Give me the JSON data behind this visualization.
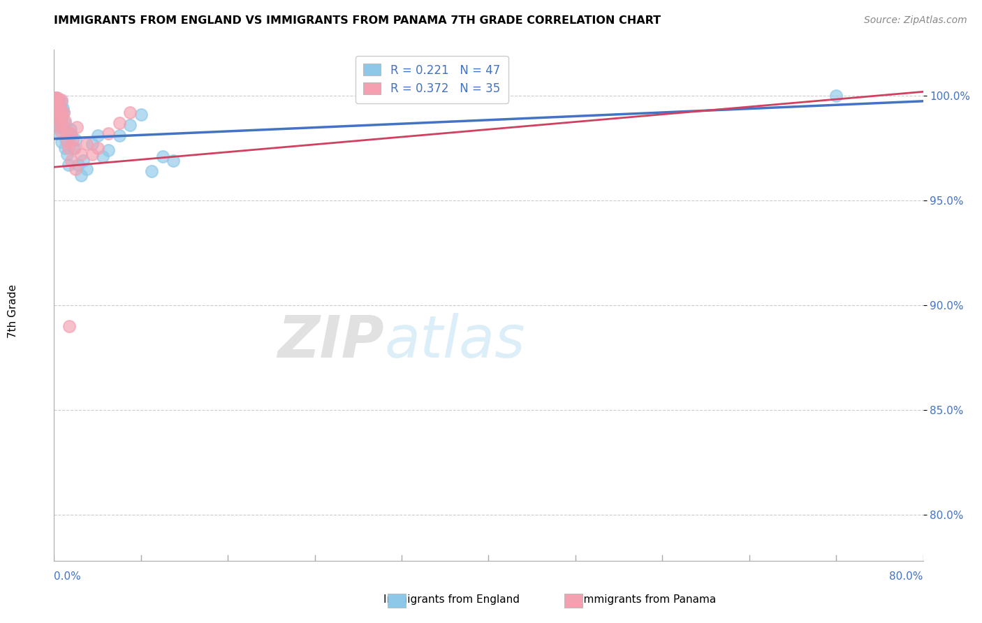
{
  "title": "IMMIGRANTS FROM ENGLAND VS IMMIGRANTS FROM PANAMA 7TH GRADE CORRELATION CHART",
  "source": "Source: ZipAtlas.com",
  "ylabel": "7th Grade",
  "ytick_labels": [
    "80.0%",
    "85.0%",
    "90.0%",
    "95.0%",
    "100.0%"
  ],
  "ytick_values": [
    0.8,
    0.85,
    0.9,
    0.95,
    1.0
  ],
  "xmin": 0.0,
  "xmax": 0.8,
  "ymin": 0.778,
  "ymax": 1.022,
  "legend_r_england": "R = 0.221",
  "legend_n_england": "N = 47",
  "legend_r_panama": "R = 0.372",
  "legend_n_panama": "N = 35",
  "color_england": "#8EC8E8",
  "color_panama": "#F4A0B0",
  "trendline_england_color": "#4472C4",
  "trendline_panama_color": "#D04060",
  "watermark_zip": "ZIP",
  "watermark_atlas": "atlas",
  "england_x": [
    0.001,
    0.001,
    0.002,
    0.002,
    0.002,
    0.003,
    0.003,
    0.003,
    0.003,
    0.004,
    0.004,
    0.004,
    0.005,
    0.005,
    0.005,
    0.006,
    0.006,
    0.007,
    0.007,
    0.007,
    0.008,
    0.008,
    0.009,
    0.01,
    0.01,
    0.011,
    0.012,
    0.013,
    0.015,
    0.016,
    0.018,
    0.02,
    0.022,
    0.025,
    0.027,
    0.03,
    0.035,
    0.04,
    0.045,
    0.05,
    0.06,
    0.07,
    0.08,
    0.09,
    0.1,
    0.11,
    0.72
  ],
  "england_y": [
    0.998,
    0.996,
    0.999,
    0.994,
    0.99,
    0.998,
    0.994,
    0.989,
    0.983,
    0.997,
    0.992,
    0.985,
    0.998,
    0.993,
    0.987,
    0.995,
    0.989,
    0.997,
    0.991,
    0.978,
    0.994,
    0.985,
    0.992,
    0.975,
    0.987,
    0.979,
    0.972,
    0.967,
    0.984,
    0.981,
    0.975,
    0.979,
    0.967,
    0.962,
    0.969,
    0.965,
    0.977,
    0.981,
    0.971,
    0.974,
    0.981,
    0.986,
    0.991,
    0.964,
    0.971,
    0.969,
    1.0
  ],
  "england_trendline_x": [
    0.0,
    0.8
  ],
  "england_trendline_y": [
    0.9795,
    0.9975
  ],
  "panama_x": [
    0.001,
    0.001,
    0.002,
    0.002,
    0.003,
    0.003,
    0.003,
    0.004,
    0.004,
    0.005,
    0.005,
    0.006,
    0.006,
    0.007,
    0.007,
    0.008,
    0.009,
    0.01,
    0.011,
    0.012,
    0.013,
    0.015,
    0.017,
    0.019,
    0.021,
    0.025,
    0.03,
    0.035,
    0.04,
    0.05,
    0.06,
    0.07,
    0.016,
    0.02,
    0.014
  ],
  "panama_y": [
    0.999,
    0.994,
    0.999,
    0.994,
    0.999,
    0.993,
    0.986,
    0.998,
    0.991,
    0.995,
    0.988,
    0.992,
    0.983,
    0.998,
    0.99,
    0.986,
    0.992,
    0.988,
    0.983,
    0.978,
    0.975,
    0.982,
    0.979,
    0.975,
    0.985,
    0.972,
    0.977,
    0.972,
    0.975,
    0.982,
    0.987,
    0.992,
    0.969,
    0.965,
    0.89
  ],
  "panama_trendline_x": [
    0.0,
    0.8
  ],
  "panama_trendline_y": [
    0.966,
    1.002
  ]
}
